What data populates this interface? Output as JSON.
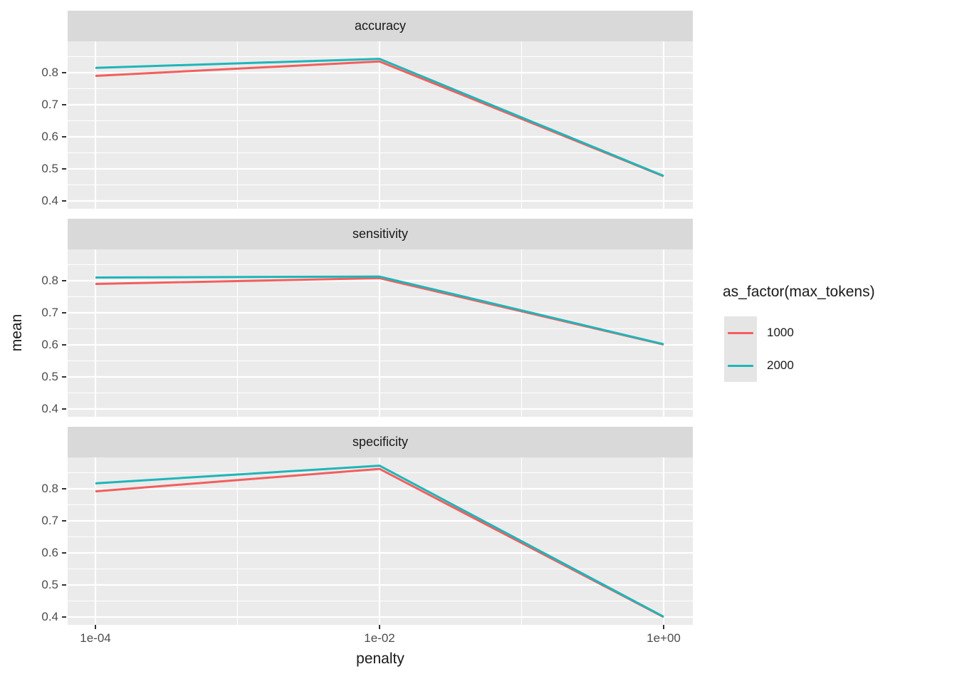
{
  "chart_data": {
    "type": "line",
    "facets": [
      {
        "label": "accuracy",
        "series": [
          {
            "name": "1000",
            "values": [
              0.79,
              0.835,
              0.477
            ]
          },
          {
            "name": "2000",
            "values": [
              0.815,
              0.843,
              0.478
            ]
          }
        ]
      },
      {
        "label": "sensitivity",
        "series": [
          {
            "name": "1000",
            "values": [
              0.79,
              0.808,
              0.601
            ]
          },
          {
            "name": "2000",
            "values": [
              0.81,
              0.813,
              0.602
            ]
          }
        ]
      },
      {
        "label": "specificity",
        "series": [
          {
            "name": "1000",
            "values": [
              0.792,
              0.862,
              0.4
            ]
          },
          {
            "name": "2000",
            "values": [
              0.817,
              0.872,
              0.401
            ]
          }
        ]
      }
    ],
    "x": [
      0.0001,
      0.01,
      1.0
    ],
    "x_scale": "log10",
    "x_tick_labels": [
      "1e-04",
      "1e-02",
      "1e+00"
    ],
    "xlabel": "penalty",
    "ylabel": "mean",
    "y_ticks": [
      0.8,
      0.7,
      0.6,
      0.5,
      0.4
    ],
    "y_tick_labels": [
      "0.8",
      "0.7",
      "0.6",
      "0.5",
      "0.4"
    ],
    "y_minor_ticks": [
      0.85,
      0.75,
      0.65,
      0.55,
      0.45
    ],
    "ylim": [
      0.3765,
      0.8935
    ],
    "grid": true,
    "legend": {
      "title": "as_factor(max_tokens)",
      "position": "right",
      "entries": [
        {
          "label": "1000",
          "color": "#F15F5D"
        },
        {
          "label": "2000",
          "color": "#1FB5B9"
        }
      ]
    },
    "colors": {
      "panel_background": "#EBEBEB",
      "strip_background": "#D9D9D9",
      "gridline": "#FFFFFF",
      "tick_text": "#4d4d4d",
      "text": "#1a1a1a",
      "legend_key_background": "#E5E5E5"
    }
  }
}
